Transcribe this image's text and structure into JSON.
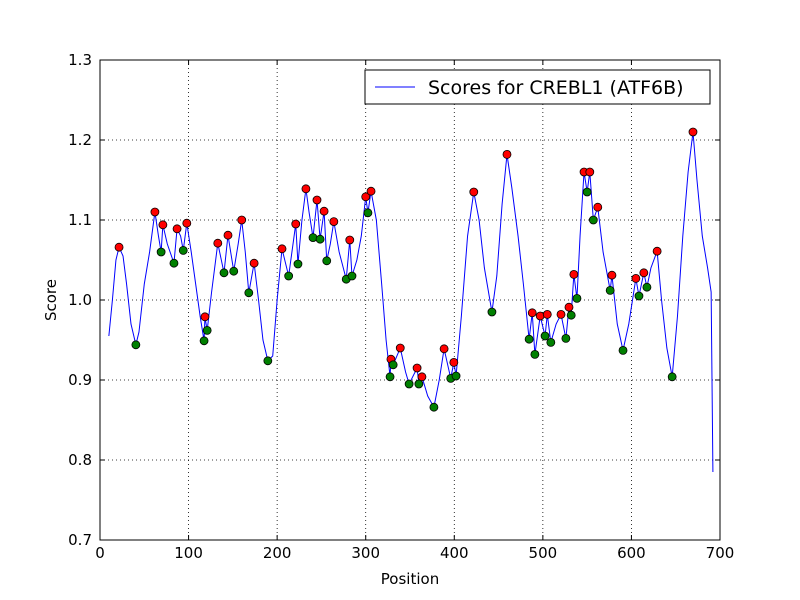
{
  "chart_data": {
    "type": "line",
    "xlabel": "Position",
    "ylabel": "Score",
    "xlim": [
      0,
      700
    ],
    "ylim": [
      0.7,
      1.3
    ],
    "xticks": [
      0,
      100,
      200,
      300,
      400,
      500,
      600,
      700
    ],
    "yticks": [
      0.7,
      0.8,
      0.9,
      {
        "value": 1,
        "label": "1.0"
      },
      1.1,
      1.2,
      1.3
    ],
    "grid": true,
    "legend": "upper right",
    "series": [
      {
        "type": "line",
        "name": "Scores for CREBL1 (ATF6B)",
        "color": "#0000ff",
        "x": [
          10,
          14,
          18,
          21.5,
          26,
          30,
          35,
          40.5,
          44,
          50,
          56,
          62,
          66,
          69,
          71,
          76,
          83.5,
          87,
          91,
          94,
          98,
          103,
          108,
          113,
          117.5,
          118.5,
          121,
          126,
          133,
          140,
          144.5,
          151,
          156,
          160,
          164,
          168,
          174,
          179,
          184,
          189.5,
          195,
          200,
          205.5,
          213,
          221,
          223.5,
          228,
          232.5,
          236,
          240.5,
          245,
          248.5,
          253,
          256,
          260,
          264,
          270,
          278,
          282,
          284.5,
          290,
          295,
          300,
          302.5,
          306,
          312,
          318,
          323,
          327.5,
          328.5,
          331,
          339,
          345,
          349,
          358,
          360,
          363.5,
          370,
          377,
          383,
          388.5,
          396,
          399.5,
          402,
          408,
          415,
          422,
          428,
          434,
          442.5,
          448,
          454,
          459.5,
          465,
          472,
          478,
          484.5,
          488,
          491,
          497,
          502.5,
          505,
          509,
          515,
          520.5,
          526,
          529.5,
          532,
          535,
          538.5,
          542,
          546.5,
          550,
          553,
          557,
          562,
          568,
          576,
          578,
          584,
          590.5,
          597,
          605,
          608.5,
          614,
          617.5,
          622,
          629,
          634,
          640,
          646,
          652,
          658,
          664,
          669.5,
          674,
          680,
          686,
          690,
          692
        ],
        "values": [
          0.955,
          1.0,
          1.05,
          1.066,
          1.055,
          1.02,
          0.97,
          0.944,
          0.96,
          1.02,
          1.06,
          1.11,
          1.08,
          1.06,
          1.094,
          1.07,
          1.046,
          1.089,
          1.08,
          1.062,
          1.096,
          1.06,
          1.02,
          0.98,
          0.949,
          0.979,
          0.962,
          1.01,
          1.071,
          1.034,
          1.081,
          1.036,
          1.07,
          1.1,
          1.06,
          1.009,
          1.046,
          1.0,
          0.95,
          0.924,
          0.93,
          1.0,
          1.064,
          1.03,
          1.095,
          1.045,
          1.1,
          1.139,
          1.11,
          1.078,
          1.125,
          1.076,
          1.111,
          1.049,
          1.07,
          1.098,
          1.06,
          1.026,
          1.075,
          1.03,
          1.05,
          1.08,
          1.129,
          1.109,
          1.136,
          1.1,
          1.02,
          0.95,
          0.904,
          0.926,
          0.919,
          0.94,
          0.91,
          0.895,
          0.915,
          0.895,
          0.904,
          0.88,
          0.866,
          0.9,
          0.939,
          0.902,
          0.922,
          0.905,
          0.98,
          1.08,
          1.135,
          1.1,
          1.04,
          0.985,
          1.03,
          1.12,
          1.182,
          1.14,
          1.08,
          1.02,
          0.951,
          0.984,
          0.932,
          0.98,
          0.955,
          0.982,
          0.947,
          0.97,
          0.982,
          0.952,
          0.991,
          0.981,
          1.032,
          1.002,
          1.08,
          1.16,
          1.135,
          1.16,
          1.1,
          1.116,
          1.06,
          1.012,
          1.031,
          0.97,
          0.937,
          0.97,
          1.027,
          1.005,
          1.034,
          1.016,
          1.04,
          1.061,
          1.0,
          0.94,
          0.904,
          0.98,
          1.08,
          1.16,
          1.21,
          1.15,
          1.08,
          1.04,
          1.01,
          0.785
        ]
      },
      {
        "type": "marker",
        "color": "#ff0000",
        "x": [
          21.5,
          62,
          71,
          87,
          98,
          118.5,
          133,
          144.5,
          160,
          174,
          205.5,
          221,
          232.5,
          245,
          253,
          264,
          282,
          300,
          306,
          328.5,
          339,
          358,
          363.5,
          388.5,
          399.5,
          422,
          459.5,
          488,
          497,
          505,
          520.5,
          529.5,
          535,
          546.5,
          553,
          562,
          578,
          605,
          614,
          629,
          669.5
        ],
        "values": [
          1.066,
          1.11,
          1.094,
          1.089,
          1.096,
          0.979,
          1.071,
          1.081,
          1.1,
          1.046,
          1.064,
          1.095,
          1.139,
          1.125,
          1.111,
          1.098,
          1.075,
          1.129,
          1.136,
          0.926,
          0.94,
          0.915,
          0.904,
          0.939,
          0.922,
          1.135,
          1.182,
          0.984,
          0.98,
          0.982,
          0.982,
          0.991,
          1.032,
          1.16,
          1.16,
          1.116,
          1.031,
          1.027,
          1.034,
          1.061,
          1.21
        ]
      },
      {
        "type": "marker",
        "color": "#008000",
        "x": [
          40.5,
          69,
          83.5,
          94,
          117.5,
          121,
          140,
          151,
          168,
          189.5,
          213,
          223.5,
          240.5,
          248.5,
          256,
          278,
          284.5,
          302.5,
          327.5,
          331,
          349,
          360,
          377,
          396,
          402,
          442.5,
          484.5,
          491,
          502.5,
          509,
          526,
          532,
          538.5,
          550,
          557,
          576,
          590.5,
          608.5,
          617.5,
          646
        ],
        "values": [
          0.944,
          1.06,
          1.046,
          1.062,
          0.949,
          0.962,
          1.034,
          1.036,
          1.009,
          0.924,
          1.03,
          1.045,
          1.078,
          1.076,
          1.049,
          1.026,
          1.03,
          1.109,
          0.904,
          0.919,
          0.895,
          0.895,
          0.866,
          0.902,
          0.905,
          0.985,
          0.951,
          0.932,
          0.955,
          0.947,
          0.952,
          0.981,
          1.002,
          1.135,
          1.1,
          1.012,
          0.937,
          1.005,
          1.016,
          0.904
        ]
      }
    ]
  }
}
